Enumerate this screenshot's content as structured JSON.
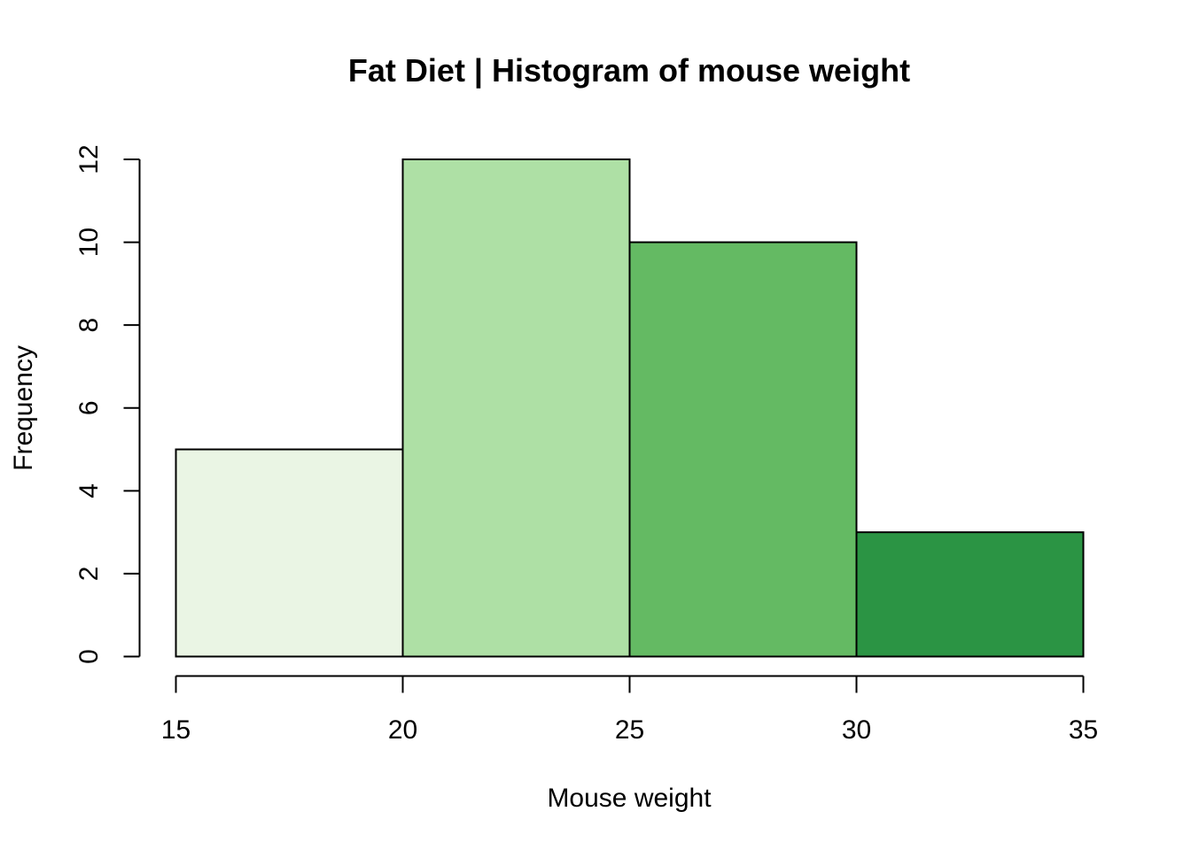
{
  "chart_data": {
    "type": "bar",
    "title": "Fat Diet | Histogram of mouse weight",
    "xlabel": "Mouse weight",
    "ylabel": "Frequency",
    "bins": [
      {
        "start": 15,
        "end": 20,
        "count": 5,
        "color": "#EAF5E4"
      },
      {
        "start": 20,
        "end": 25,
        "count": 12,
        "color": "#AEE0A5"
      },
      {
        "start": 25,
        "end": 30,
        "count": 10,
        "color": "#64BA63"
      },
      {
        "start": 30,
        "end": 35,
        "count": 3,
        "color": "#2B9444"
      }
    ],
    "xlim": [
      15,
      35
    ],
    "ylim": [
      0,
      12
    ],
    "x_ticks": [
      15,
      20,
      25,
      30,
      35
    ],
    "y_ticks": [
      0,
      2,
      4,
      6,
      8,
      10,
      12
    ],
    "grid": false,
    "legend": "none"
  }
}
